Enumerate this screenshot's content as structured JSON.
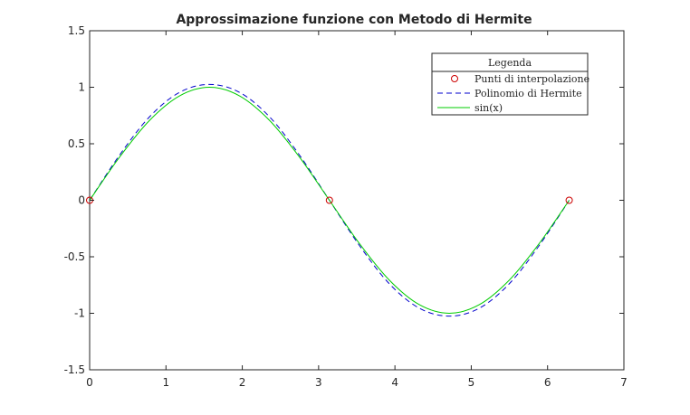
{
  "chart_data": {
    "type": "line",
    "title": "Approssimazione funzione con Metodo di Hermite",
    "xlabel": "",
    "ylabel": "",
    "xlim": [
      0,
      7
    ],
    "ylim": [
      -1.5,
      1.5
    ],
    "x_ticks": [
      0,
      1,
      2,
      3,
      4,
      5,
      6,
      7
    ],
    "y_ticks": [
      -1.5,
      -1,
      -0.5,
      0,
      0.5,
      1,
      1.5
    ],
    "x_tick_labels": [
      "0",
      "1",
      "2",
      "3",
      "4",
      "5",
      "6",
      "7"
    ],
    "y_tick_labels": [
      "-1.5",
      "-1",
      "-0.5",
      "0",
      "0.5",
      "1",
      "1.5"
    ],
    "grid": false,
    "legend": {
      "title": "Legenda",
      "position": "top-right",
      "entries": [
        "Punti di interpolazione",
        "Polinomio di Hermite",
        "sin(x)"
      ]
    },
    "series": [
      {
        "name": "Punti di interpolazione",
        "style": "markers",
        "marker": "circle",
        "color": "#cc0000",
        "x": [
          0,
          3.1416,
          6.2832
        ],
        "y": [
          0,
          0,
          0
        ]
      },
      {
        "name": "Polinomio di Hermite",
        "style": "dashed",
        "color": "#0000cc",
        "x": [
          0,
          0.3927,
          0.7854,
          1.1781,
          1.5708,
          1.9635,
          2.3562,
          2.7489,
          3.1416,
          3.5343,
          3.927,
          4.3197,
          4.7124,
          5.1051,
          5.4978,
          5.8905,
          6.2832
        ],
        "y": [
          0,
          0.4,
          0.739,
          0.955,
          1.025,
          0.955,
          0.739,
          0.4,
          0,
          -0.4,
          -0.739,
          -0.955,
          -1.025,
          -0.955,
          -0.739,
          -0.4,
          0
        ]
      },
      {
        "name": "sin(x)",
        "style": "solid",
        "color": "#00cc00",
        "x": [
          0,
          0.3927,
          0.7854,
          1.1781,
          1.5708,
          1.9635,
          2.3562,
          2.7489,
          3.1416,
          3.5343,
          3.927,
          4.3197,
          4.7124,
          5.1051,
          5.4978,
          5.8905,
          6.2832
        ],
        "y": [
          0,
          0.3827,
          0.7071,
          0.9239,
          1,
          0.9239,
          0.7071,
          0.3827,
          0,
          -0.3827,
          -0.7071,
          -0.9239,
          -1,
          -0.9239,
          -0.7071,
          -0.3827,
          0
        ]
      }
    ]
  }
}
